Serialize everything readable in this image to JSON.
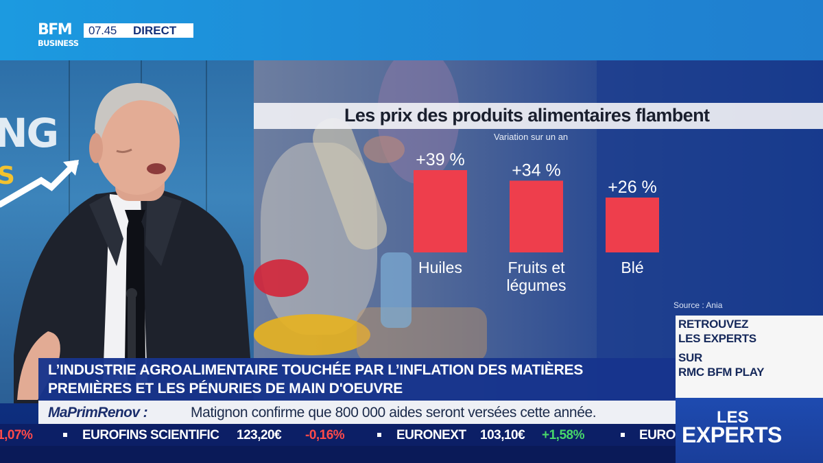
{
  "broadcast": {
    "logo_top": "BFM",
    "logo_bottom": "BUSINESS",
    "time": "07.45",
    "live_label": "DIRECT"
  },
  "studio": {
    "backdrop_word": "NG",
    "backdrop_word2": "S"
  },
  "chart": {
    "title": "Les prix des produits alimentaires flambent",
    "subtitle": "Variation sur un an",
    "source": "Source : Ania",
    "bar_color": "#ee3e4c"
  },
  "chart_data": {
    "type": "bar",
    "title": "Les prix des produits alimentaires flambent",
    "subtitle": "Variation sur un an",
    "categories": [
      "Huiles",
      "Fruits et légumes",
      "Blé"
    ],
    "category_lines": [
      [
        "Huiles"
      ],
      [
        "Fruits et",
        "légumes"
      ],
      [
        "Blé"
      ]
    ],
    "values": [
      39,
      34,
      26
    ],
    "value_labels": [
      "+39 %",
      "+34 %",
      "+26 %"
    ],
    "unit": "%",
    "ylim": [
      0,
      39
    ],
    "grid": false,
    "legend": "none"
  },
  "promo": {
    "line1": "RETROUVEZ",
    "line2": "LES EXPERTS",
    "line3": "SUR",
    "line4": "RMC BFM PLAY"
  },
  "show": {
    "line1": "LES",
    "line2": "EXPERTS"
  },
  "headline": {
    "line1": "L’INDUSTRIE AGROALIMENTAIRE TOUCHÉE PAR L’INFLATION DES MATIÈRES",
    "line2": "PREMIÈRES ET LES PÉNURIES DE MAIN D'OEUVRE"
  },
  "news": {
    "source": "MaPrimRenov :",
    "text": "Matignon confirme que 800 000 aides seront versées cette année."
  },
  "ticker": {
    "items": [
      {
        "text": "1,07%",
        "color": "#ff4a4a"
      },
      {
        "text": "EUROFINS SCIENTIFIC",
        "color": "#ffffff"
      },
      {
        "text": "123,20€",
        "color": "#ffffff"
      },
      {
        "text": "-0,16%",
        "color": "#ff4a4a"
      },
      {
        "text": "EURONEXT",
        "color": "#ffffff"
      },
      {
        "text": "103,10€",
        "color": "#ffffff"
      },
      {
        "text": "+1,58%",
        "color": "#48d86a"
      },
      {
        "text": "EURO",
        "color": "#ffffff"
      }
    ]
  },
  "colors": {
    "accent_blue": "#17348c",
    "negative": "#ff4a4a",
    "positive": "#48d86a"
  }
}
